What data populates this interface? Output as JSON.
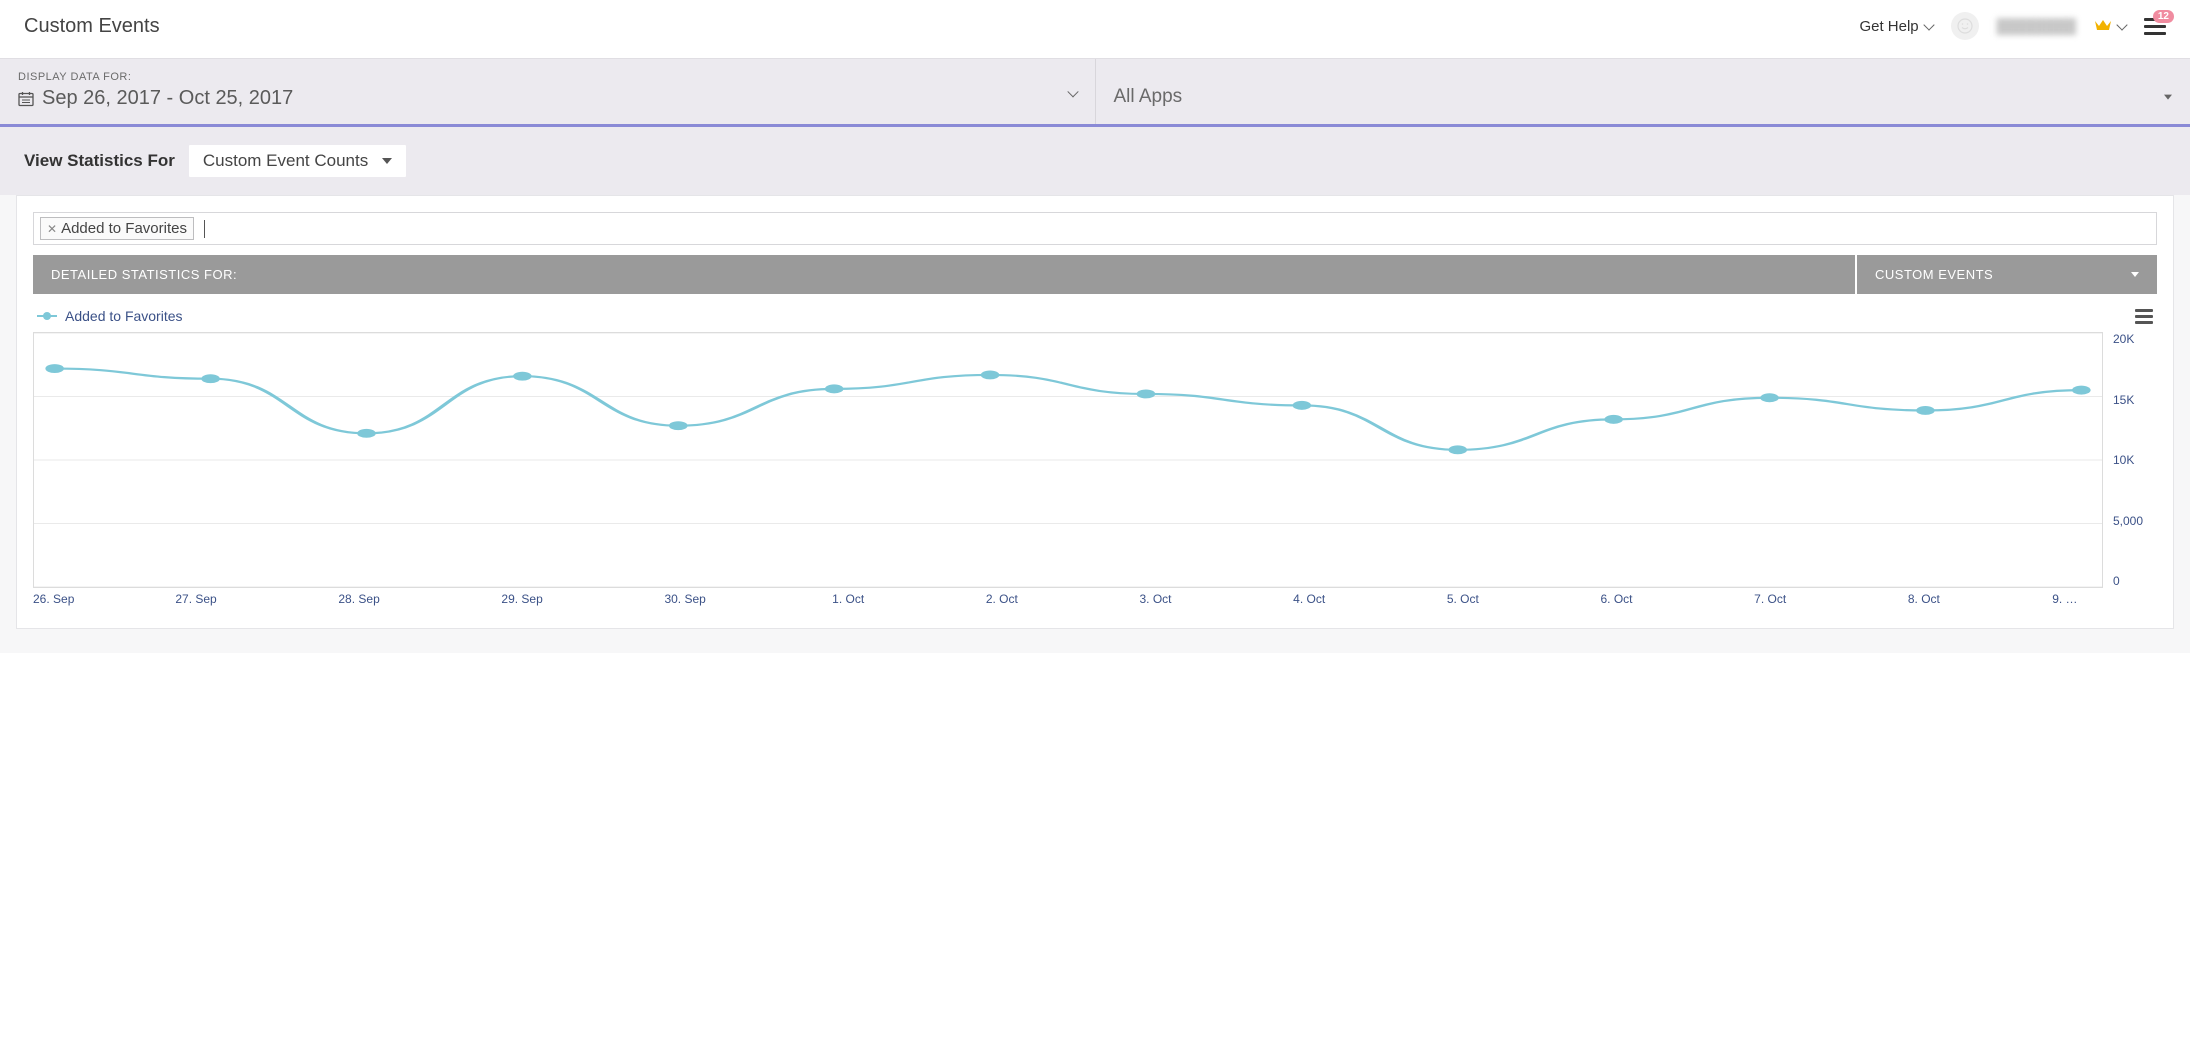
{
  "header": {
    "title": "Custom Events",
    "get_help": "Get Help",
    "user_name": "████████",
    "notification_count": "12"
  },
  "filters": {
    "display_label": "DISPLAY DATA FOR:",
    "date_range": "Sep 26, 2017 - Oct 25, 2017",
    "app_selector": "All Apps",
    "view_stats_label": "View Statistics For",
    "stat_type": "Custom Event Counts"
  },
  "tag_input": {
    "tags": [
      "Added to Favorites"
    ]
  },
  "stats_bar": {
    "left_label": "DETAILED STATISTICS FOR:",
    "right_label": "CUSTOM EVENTS"
  },
  "chart": {
    "type": "line",
    "legend_label": "Added to Favorites",
    "series_color": "#7ec8d8",
    "marker_radius": 4.5,
    "line_width": 2.2,
    "background_color": "#ffffff",
    "grid_color": "#eaeaea",
    "border_color": "#dcdcdc",
    "x_labels": [
      "26. Sep",
      "27. Sep",
      "28. Sep",
      "29. Sep",
      "30. Sep",
      "1. Oct",
      "2. Oct",
      "3. Oct",
      "4. Oct",
      "5. Oct",
      "6. Oct",
      "7. Oct",
      "8. Oct",
      "9. …"
    ],
    "y_ticks": [
      0,
      5000,
      10000,
      15000,
      20000
    ],
    "y_tick_labels": [
      "0",
      "5,000",
      "10K",
      "15K",
      "20K"
    ],
    "ylim": [
      0,
      20000
    ],
    "values": [
      17200,
      16400,
      12100,
      16600,
      12700,
      15600,
      16700,
      15200,
      14300,
      10800,
      13200,
      14900,
      13900,
      15500
    ],
    "label_color": "#3b5187",
    "label_fontsize": 12
  }
}
